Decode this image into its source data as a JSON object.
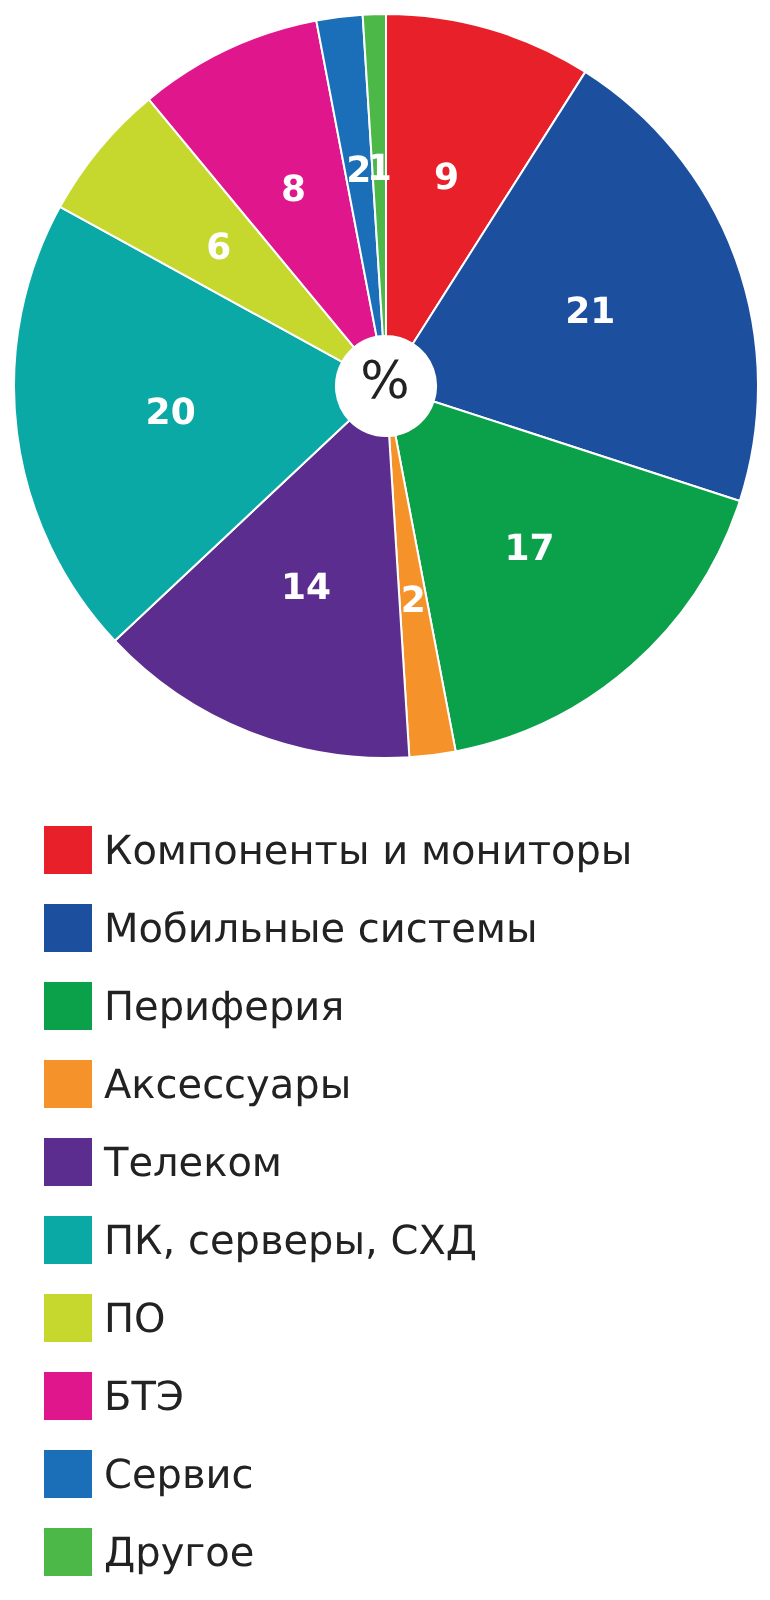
{
  "chart_data": {
    "type": "donut",
    "categories": [
      "Компоненты и мониторы",
      "Мобильные системы",
      "Периферия",
      "Аксессуары",
      "Телеком",
      "ПК, серверы, СХД",
      "ПО",
      "БТЭ",
      "Сервис",
      "Другое"
    ],
    "values": [
      9,
      21,
      17,
      2,
      14,
      20,
      6,
      8,
      2,
      1
    ],
    "colors": [
      "#e8202a",
      "#1d4f9f",
      "#0ba04a",
      "#f5922a",
      "#5b2d8e",
      "#0aa9a6",
      "#c6d82e",
      "#e0168c",
      "#1a6fb8",
      "#4cb848"
    ],
    "annotations": [
      "%"
    ],
    "data_labels": true,
    "legend": "bottom"
  }
}
